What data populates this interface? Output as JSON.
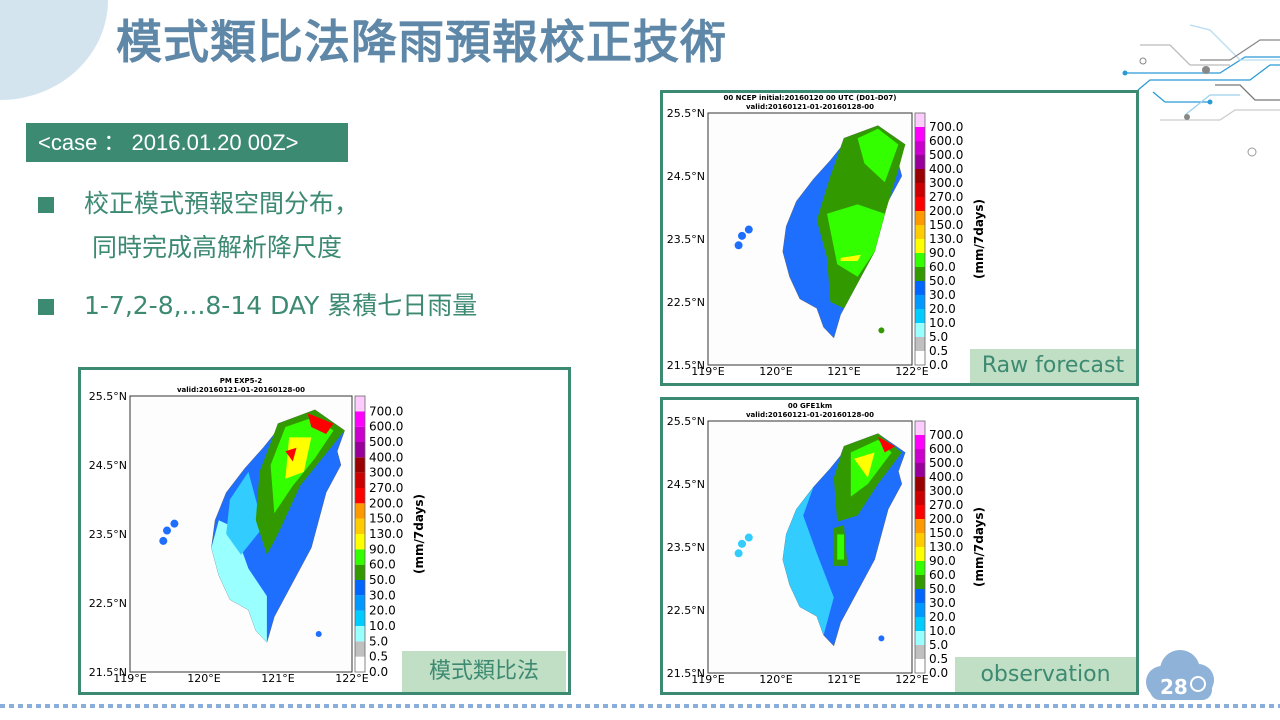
{
  "slide": {
    "title": "模式類比法降雨預報校正技術",
    "case_label": "<case ： 2016.01.20 00Z>",
    "bullets": [
      "校正模式預報空間分布，",
      "同時完成高解析降尺度",
      "1-7,2-8,...8-14 DAY 累積七日雨量"
    ],
    "page_number": "28"
  },
  "colorbar": {
    "unit_label": "(mm/7days)",
    "levels": [
      "0.0",
      "0.5",
      "5.0",
      "10.0",
      "20.0",
      "30.0",
      "50.0",
      "60.0",
      "90.0",
      "130.0",
      "150.0",
      "200.0",
      "270.0",
      "300.0",
      "400.0",
      "500.0",
      "600.0",
      "700.0"
    ],
    "colors": [
      "#ffffff",
      "#c0c0c0",
      "#99ffff",
      "#00ccff",
      "#0099ff",
      "#0066ff",
      "#339900",
      "#33ff00",
      "#ffff00",
      "#ffcc00",
      "#ff9900",
      "#ff0000",
      "#cc0000",
      "#990000",
      "#990099",
      "#cc00cc",
      "#ff00ff",
      "#ffccff"
    ]
  },
  "axes": {
    "lon_ticks": [
      "119°E",
      "120°E",
      "121°E",
      "122°E"
    ],
    "lat_ticks": [
      "21.5°N",
      "22.5°N",
      "23.5°N",
      "24.5°N",
      "25.5°N"
    ]
  },
  "maps": {
    "raw": {
      "title1": "00 NCEP initial:20160120 00 UTC (D01-D07)",
      "title2": "valid:20160121-01-20160128-00",
      "tag": "Raw forecast"
    },
    "analog": {
      "title1": "PM EXP5-2",
      "title2": "valid:20160121-01-20160128-00",
      "tag": "模式類比法"
    },
    "obs": {
      "title1": "00 GFE1km",
      "title2": "valid:20160121-01-20160128-00",
      "tag": "observation"
    }
  },
  "theme": {
    "accent": "#3d8a73",
    "title_color": "#5f87a8",
    "tag_bg": "#c1dfc4"
  }
}
